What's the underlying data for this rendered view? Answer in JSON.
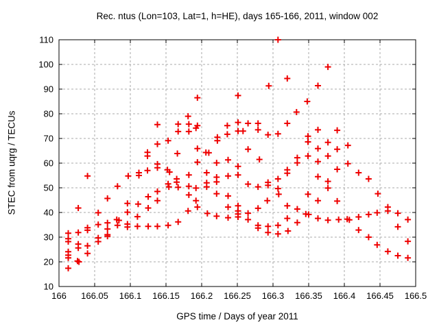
{
  "chart_data": {
    "type": "scatter",
    "title": "Rec. ntus (Lon=103, Lat=1, h=HE), days 165-166, 2011, window 002",
    "xlabel": "GPS time / Days of year 2011",
    "ylabel": "STEC from uqrg / TECUs",
    "xlim": [
      166,
      166.5
    ],
    "ylim": [
      10,
      110
    ],
    "x_tick_values": [
      166,
      166.05,
      166.1,
      166.15,
      166.2,
      166.25,
      166.3,
      166.35,
      166.4,
      166.45,
      166.5
    ],
    "x_tick_labels": [
      "166",
      "166.05",
      "166.1",
      "166.15",
      "166.2",
      "166.25",
      "166.3",
      "166.35",
      "166.4",
      "166.45",
      "166.5"
    ],
    "y_tick_values": [
      10,
      20,
      30,
      40,
      50,
      60,
      70,
      80,
      90,
      100,
      110
    ],
    "y_tick_labels": [
      "10",
      "20",
      "30",
      "40",
      "50",
      "60",
      "70",
      "80",
      "90",
      "100",
      "110"
    ],
    "grid": true,
    "legend": false,
    "marker": "plus",
    "marker_color": "#ee0000",
    "grid_color": "#a8a8a8",
    "axis_color": "#000000",
    "background_color": "#ffffff",
    "series": [
      {
        "name": "STEC from uqrg",
        "points": [
          [
            166.013,
            31.6
          ],
          [
            166.013,
            29.4
          ],
          [
            166.013,
            28.2
          ],
          [
            166.013,
            24.1
          ],
          [
            166.013,
            22.7
          ],
          [
            166.013,
            21.6
          ],
          [
            166.013,
            17.4
          ],
          [
            166.027,
            41.8
          ],
          [
            166.027,
            31.9
          ],
          [
            166.027,
            27.2
          ],
          [
            166.027,
            25.6
          ],
          [
            166.026,
            20.3
          ],
          [
            166.028,
            20.0
          ],
          [
            166.04,
            54.8
          ],
          [
            166.04,
            33.8
          ],
          [
            166.04,
            32.8
          ],
          [
            166.04,
            26.5
          ],
          [
            166.04,
            23.4
          ],
          [
            166.055,
            39.9
          ],
          [
            166.055,
            35.1
          ],
          [
            166.055,
            29.7
          ],
          [
            166.055,
            28.2
          ],
          [
            166.068,
            45.7
          ],
          [
            166.068,
            35.8
          ],
          [
            166.068,
            33.3
          ],
          [
            166.068,
            31.0
          ],
          [
            166.068,
            30.4
          ],
          [
            166.082,
            50.6
          ],
          [
            166.081,
            37.1
          ],
          [
            166.084,
            36.8
          ],
          [
            166.082,
            34.8
          ],
          [
            166.097,
            54.8
          ],
          [
            166.096,
            43.7
          ],
          [
            166.096,
            40.1
          ],
          [
            166.096,
            35.3
          ],
          [
            166.096,
            34.1
          ],
          [
            166.112,
            56.1
          ],
          [
            166.112,
            55.0
          ],
          [
            166.111,
            43.4
          ],
          [
            166.11,
            38.3
          ],
          [
            166.11,
            34.4
          ],
          [
            166.124,
            64.4
          ],
          [
            166.124,
            62.9
          ],
          [
            166.124,
            57.0
          ],
          [
            166.125,
            46.4
          ],
          [
            166.125,
            41.8
          ],
          [
            166.125,
            34.4
          ],
          [
            166.138,
            75.6
          ],
          [
            166.138,
            67.7
          ],
          [
            166.138,
            59.6
          ],
          [
            166.138,
            58.1
          ],
          [
            166.138,
            48.5
          ],
          [
            166.138,
            44.8
          ],
          [
            166.138,
            34.4
          ],
          [
            166.153,
            69.1
          ],
          [
            166.152,
            57.3
          ],
          [
            166.155,
            56.4
          ],
          [
            166.153,
            51.6
          ],
          [
            166.154,
            50.4
          ],
          [
            166.153,
            34.8
          ],
          [
            166.167,
            75.8
          ],
          [
            166.167,
            72.8
          ],
          [
            166.166,
            63.9
          ],
          [
            166.165,
            53.6
          ],
          [
            166.165,
            52.3
          ],
          [
            166.167,
            50.2
          ],
          [
            166.167,
            36.2
          ],
          [
            166.181,
            79.0
          ],
          [
            166.182,
            75.8
          ],
          [
            166.182,
            72.8
          ],
          [
            166.182,
            55.2
          ],
          [
            166.182,
            50.6
          ],
          [
            166.182,
            47.1
          ],
          [
            166.181,
            40.6
          ],
          [
            166.194,
            86.5
          ],
          [
            166.194,
            75.2
          ],
          [
            166.192,
            74.2
          ],
          [
            166.194,
            65.9
          ],
          [
            166.194,
            60.4
          ],
          [
            166.192,
            49.9
          ],
          [
            166.192,
            44.8
          ],
          [
            166.194,
            42.2
          ],
          [
            166.206,
            64.3
          ],
          [
            166.21,
            64.2
          ],
          [
            166.207,
            56.1
          ],
          [
            166.207,
            52.0
          ],
          [
            166.207,
            50.4
          ],
          [
            166.208,
            39.6
          ],
          [
            166.222,
            70.5
          ],
          [
            166.222,
            69.1
          ],
          [
            166.221,
            60.1
          ],
          [
            166.221,
            54.3
          ],
          [
            166.221,
            52.4
          ],
          [
            166.221,
            47.6
          ],
          [
            166.221,
            38.5
          ],
          [
            166.236,
            75.2
          ],
          [
            166.236,
            71.7
          ],
          [
            166.237,
            61.3
          ],
          [
            166.237,
            54.8
          ],
          [
            166.237,
            46.7
          ],
          [
            166.237,
            42.2
          ],
          [
            166.237,
            37.9
          ],
          [
            166.251,
            87.4
          ],
          [
            166.251,
            76.5
          ],
          [
            166.251,
            73.0
          ],
          [
            166.251,
            58.7
          ],
          [
            166.251,
            55.2
          ],
          [
            166.251,
            42.7
          ],
          [
            166.251,
            40.6
          ],
          [
            166.251,
            39.4
          ],
          [
            166.251,
            38.2
          ],
          [
            166.258,
            73.0
          ],
          [
            166.265,
            76.1
          ],
          [
            166.265,
            65.6
          ],
          [
            166.265,
            51.5
          ],
          [
            166.265,
            39.7
          ],
          [
            166.265,
            37.1
          ],
          [
            166.279,
            76.1
          ],
          [
            166.279,
            73.5
          ],
          [
            166.281,
            61.5
          ],
          [
            166.279,
            50.4
          ],
          [
            166.279,
            41.7
          ],
          [
            166.279,
            34.8
          ],
          [
            166.279,
            33.7
          ],
          [
            166.294,
            91.3
          ],
          [
            166.293,
            71.5
          ],
          [
            166.293,
            52.2
          ],
          [
            166.293,
            51.0
          ],
          [
            166.292,
            44.8
          ],
          [
            166.293,
            34.4
          ],
          [
            166.293,
            31.9
          ],
          [
            166.307,
            110.0
          ],
          [
            166.307,
            71.9
          ],
          [
            166.307,
            53.6
          ],
          [
            166.307,
            49.7
          ],
          [
            166.308,
            47.4
          ],
          [
            166.307,
            34.8
          ],
          [
            166.307,
            31.3
          ],
          [
            166.32,
            94.3
          ],
          [
            166.32,
            76.1
          ],
          [
            166.32,
            57.3
          ],
          [
            166.32,
            55.9
          ],
          [
            166.32,
            42.7
          ],
          [
            166.32,
            37.6
          ],
          [
            166.321,
            32.5
          ],
          [
            166.333,
            80.7
          ],
          [
            166.334,
            62.2
          ],
          [
            166.334,
            60.1
          ],
          [
            166.334,
            41.4
          ],
          [
            166.334,
            35.9
          ],
          [
            166.348,
            85.0
          ],
          [
            166.349,
            70.9
          ],
          [
            166.349,
            68.6
          ],
          [
            166.349,
            62.9
          ],
          [
            166.349,
            47.4
          ],
          [
            166.346,
            39.4
          ],
          [
            166.35,
            39.2
          ],
          [
            166.363,
            91.4
          ],
          [
            166.363,
            73.5
          ],
          [
            166.363,
            65.9
          ],
          [
            166.363,
            60.6
          ],
          [
            166.363,
            54.5
          ],
          [
            166.363,
            44.8
          ],
          [
            166.363,
            37.6
          ],
          [
            166.377,
            99.0
          ],
          [
            166.377,
            68.4
          ],
          [
            166.377,
            62.9
          ],
          [
            166.377,
            52.6
          ],
          [
            166.377,
            49.9
          ],
          [
            166.377,
            36.9
          ],
          [
            166.39,
            73.3
          ],
          [
            166.39,
            65.6
          ],
          [
            166.39,
            57.5
          ],
          [
            166.39,
            44.6
          ],
          [
            166.392,
            37.1
          ],
          [
            166.405,
            67.2
          ],
          [
            166.405,
            59.8
          ],
          [
            166.404,
            37.3
          ],
          [
            166.407,
            37.0
          ],
          [
            166.42,
            56.1
          ],
          [
            166.42,
            38.2
          ],
          [
            166.42,
            32.9
          ],
          [
            166.434,
            53.6
          ],
          [
            166.434,
            39.2
          ],
          [
            166.434,
            30.0
          ],
          [
            166.447,
            47.6
          ],
          [
            166.446,
            39.9
          ],
          [
            166.446,
            26.9
          ],
          [
            166.461,
            42.2
          ],
          [
            166.461,
            40.6
          ],
          [
            166.461,
            24.2
          ],
          [
            166.475,
            39.7
          ],
          [
            166.475,
            34.2
          ],
          [
            166.475,
            22.5
          ],
          [
            166.489,
            37.1
          ],
          [
            166.489,
            28.3
          ],
          [
            166.489,
            21.6
          ]
        ]
      }
    ]
  }
}
